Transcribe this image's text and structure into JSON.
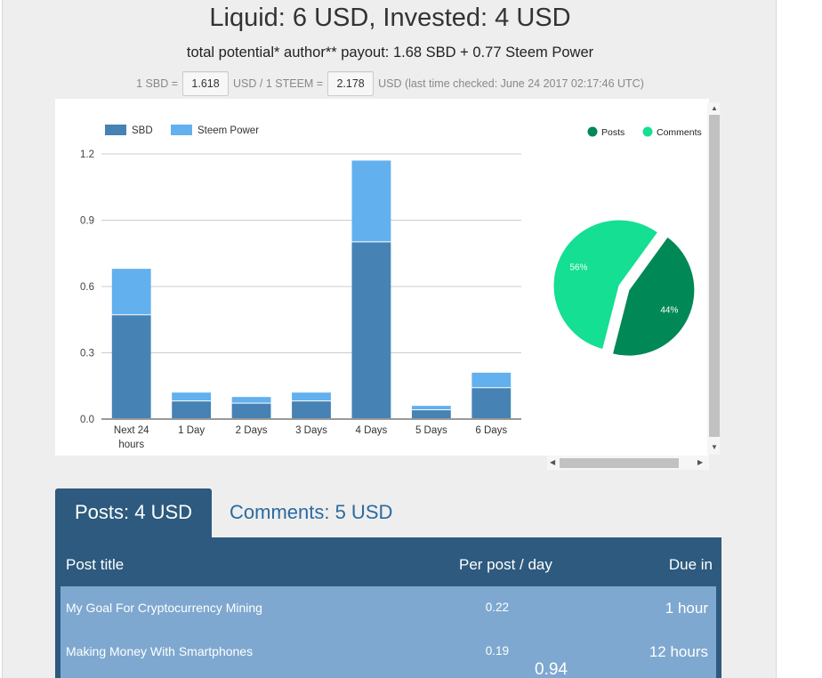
{
  "header": {
    "title": "Liquid: 6 USD, Invested: 4 USD",
    "subtitle": "total potential* author** payout: 1.68 SBD + 0.77 Steem Power"
  },
  "rates": {
    "sbd_prefix": "1 SBD =",
    "sbd_value": "1.618",
    "steem_middle": "USD / 1 STEEM =",
    "steem_value": "2.178",
    "suffix": "USD (last time checked: June 24 2017 02:17:46 UTC)"
  },
  "chart_data": [
    {
      "type": "bar",
      "stacked": true,
      "categories": [
        "Next 24 hours",
        "1 Day",
        "2 Days",
        "3 Days",
        "4 Days",
        "5 Days",
        "6 Days"
      ],
      "series": [
        {
          "name": "SBD",
          "color": "#4682b4",
          "values": [
            0.47,
            0.08,
            0.07,
            0.08,
            0.8,
            0.04,
            0.14
          ]
        },
        {
          "name": "Steem Power",
          "color": "#63b0ee",
          "values": [
            0.21,
            0.04,
            0.03,
            0.04,
            0.37,
            0.02,
            0.07
          ]
        }
      ],
      "yticks": [
        "0.0",
        "0.3",
        "0.6",
        "0.9",
        "1.2"
      ],
      "ylim": [
        0,
        1.2
      ],
      "legend": "top-left",
      "grid": true
    },
    {
      "type": "pie",
      "slices": [
        {
          "name": "Posts",
          "value": 44,
          "label": "44%",
          "color": "#008856"
        },
        {
          "name": "Comments",
          "value": 56,
          "label": "56%",
          "color": "#14df92"
        }
      ],
      "legend": "top"
    }
  ],
  "tabs": {
    "posts": "Posts: 4 USD",
    "comments": "Comments: 5 USD"
  },
  "table": {
    "headers": {
      "title": "Post title",
      "per_day": "Per post / day",
      "due": "Due in"
    },
    "rows": [
      {
        "title": "My Goal For Cryptocurrency Mining",
        "per_day": "0.22",
        "due": "1 hour"
      },
      {
        "title": "Making Money With Smartphones",
        "per_day": "0.19",
        "due": "12 hours"
      }
    ],
    "overlay_value": "0.94"
  }
}
